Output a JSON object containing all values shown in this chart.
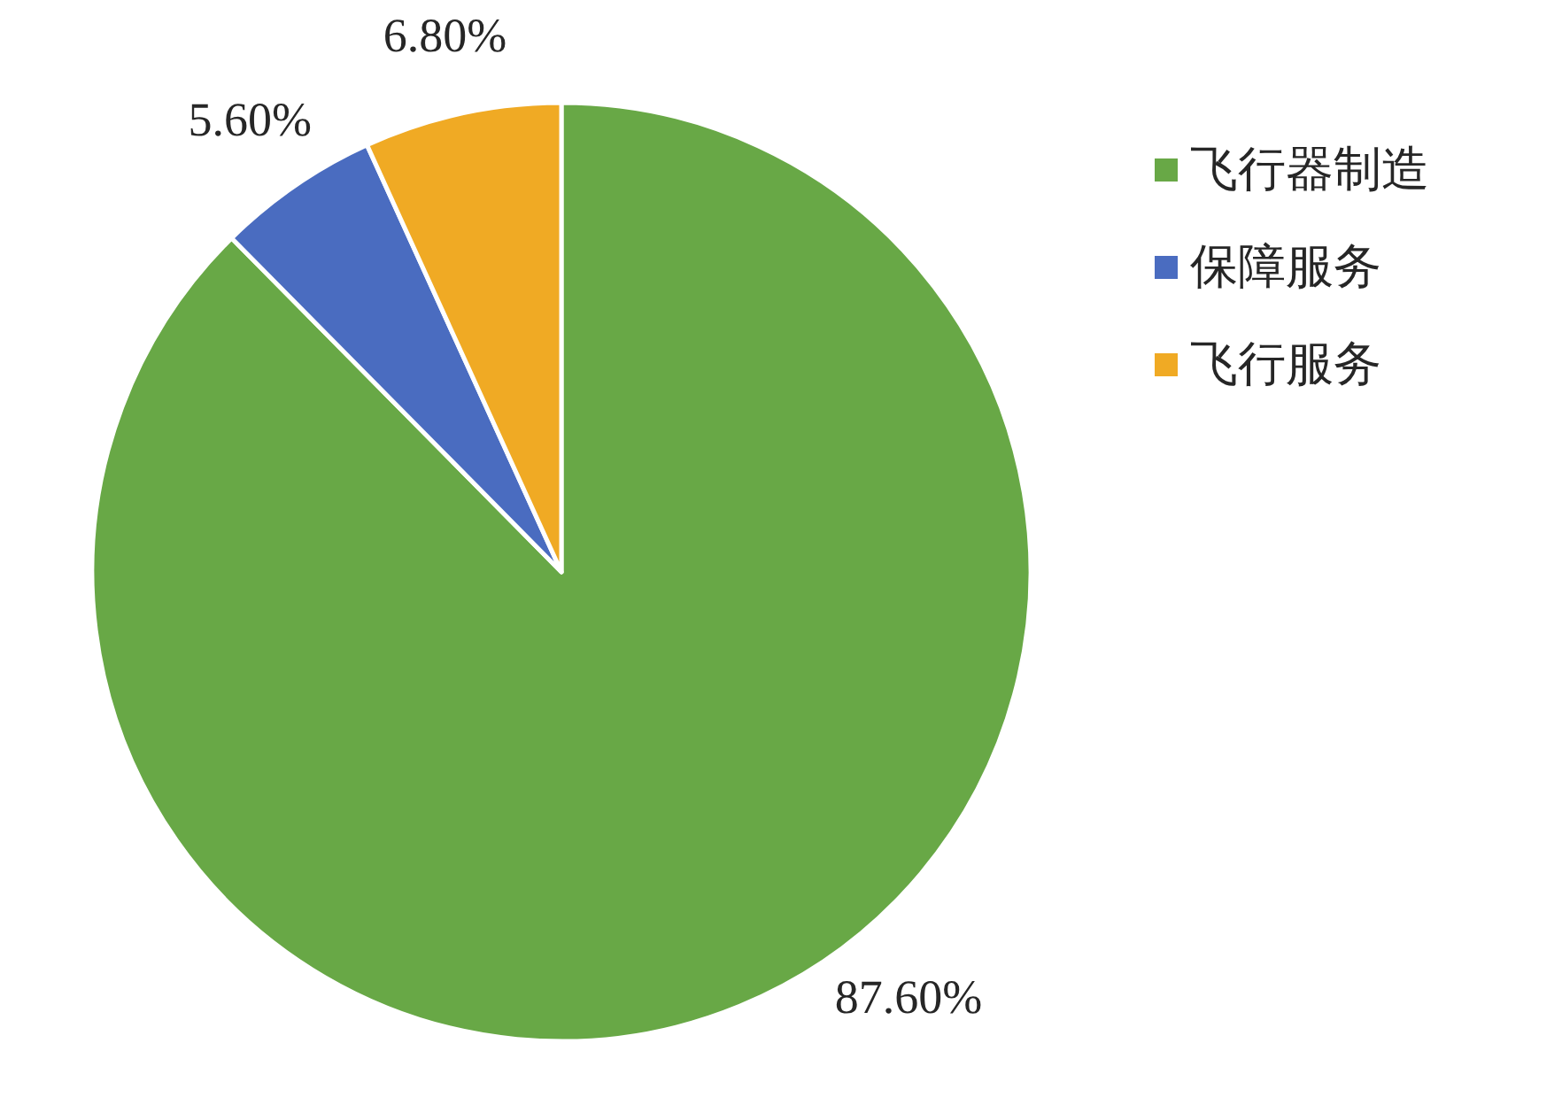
{
  "chart_data": {
    "type": "pie",
    "categories": [
      "飞行器制造",
      "保障服务",
      "飞行服务"
    ],
    "values": [
      87.6,
      5.6,
      6.8
    ],
    "colors": [
      "#68a846",
      "#4a6cc0",
      "#f0aa24"
    ],
    "value_labels": [
      "87.60%",
      "5.60%",
      "6.80%"
    ],
    "legend": "top right"
  }
}
